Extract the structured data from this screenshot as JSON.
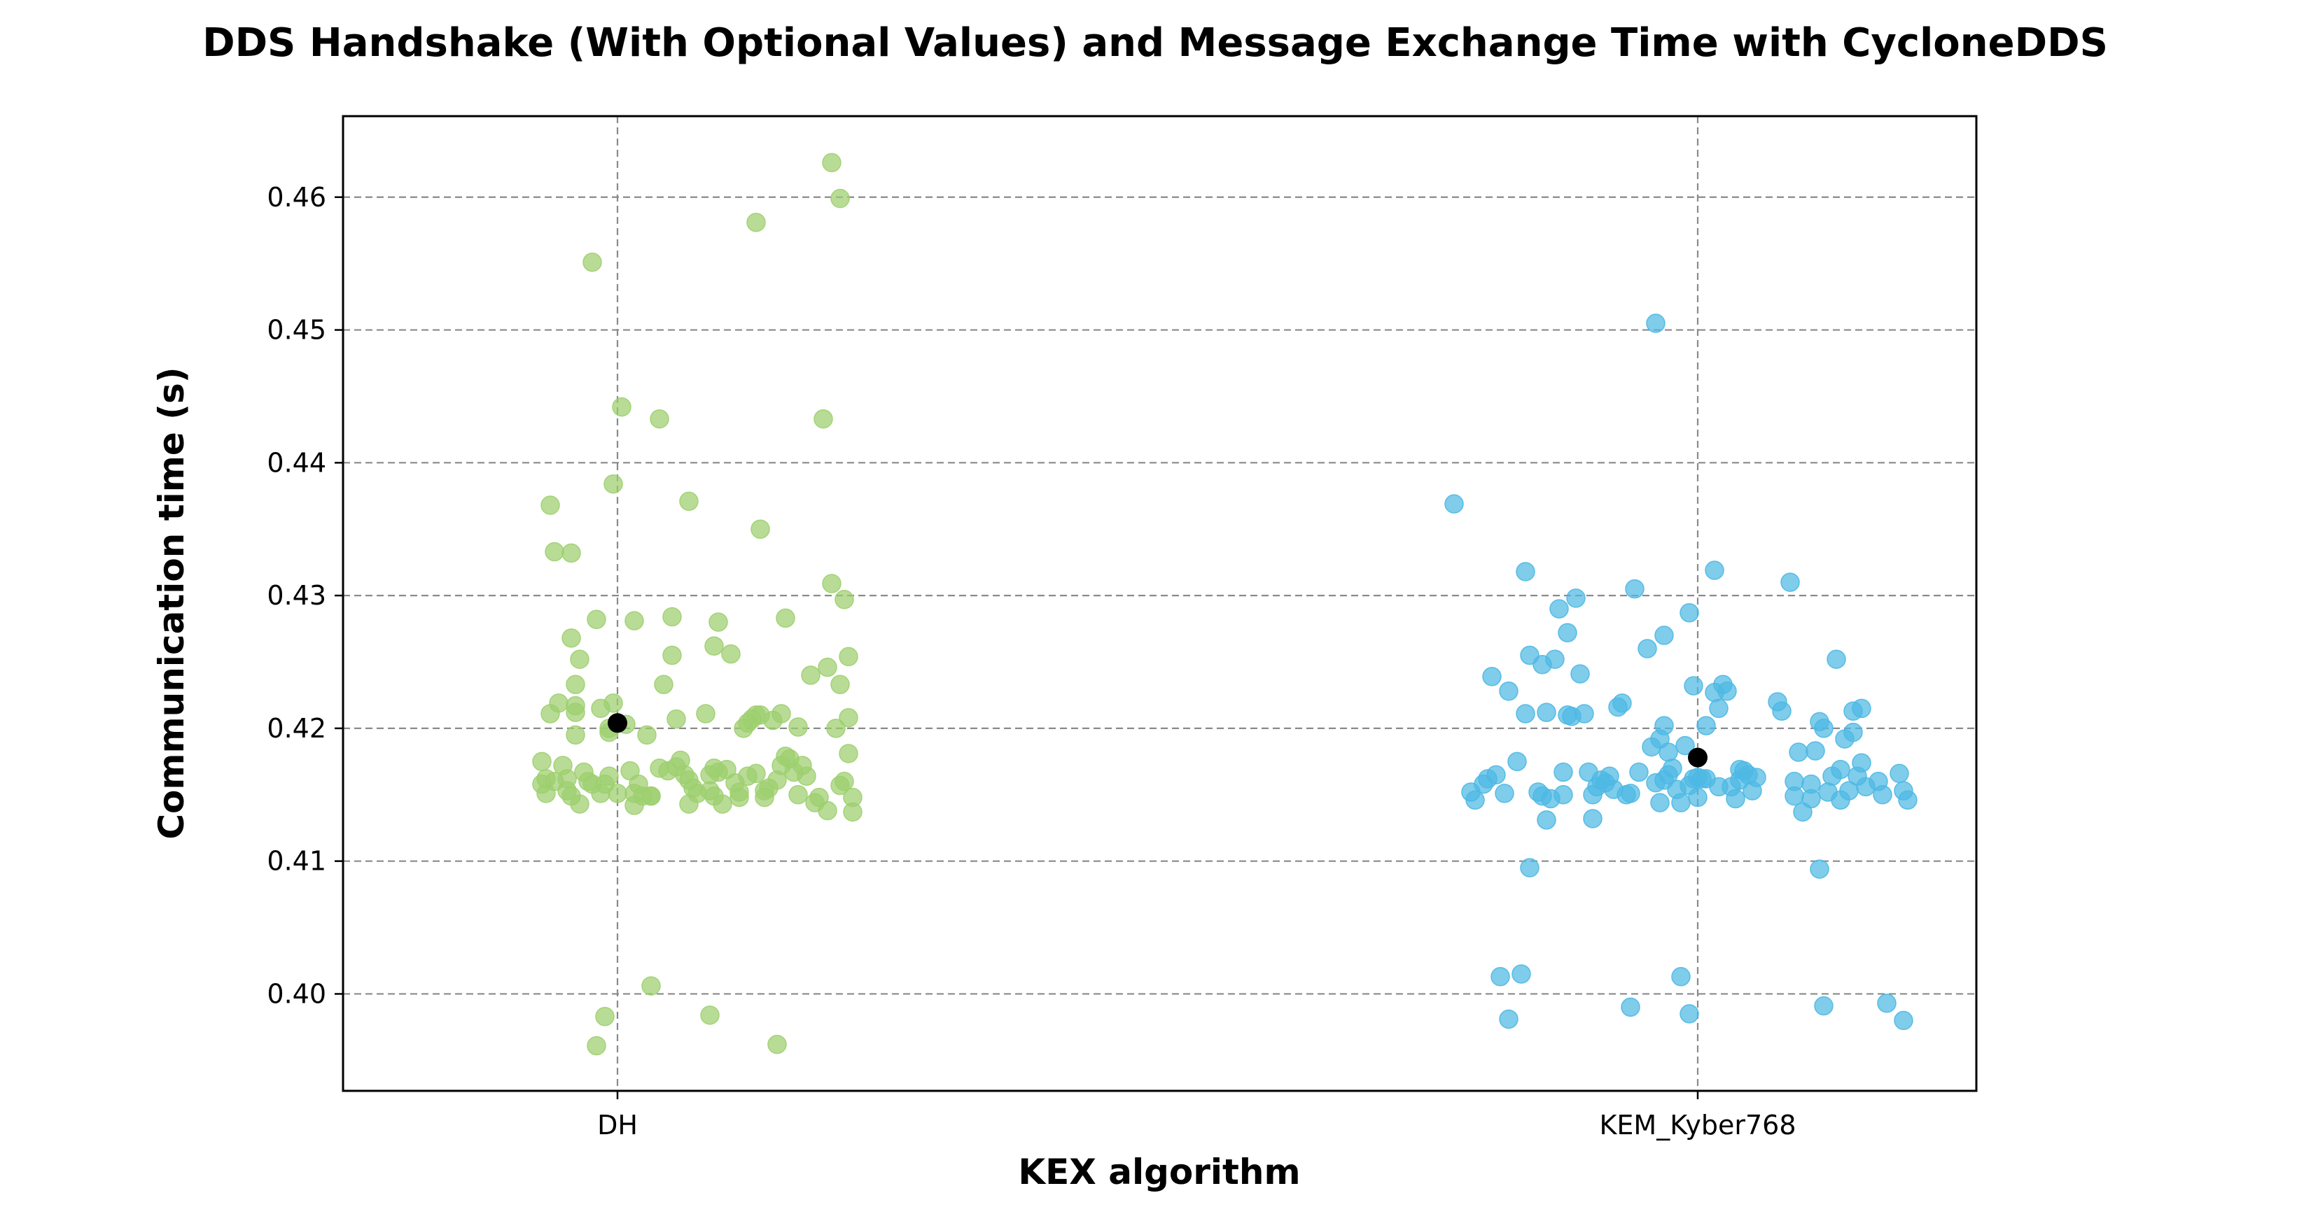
{
  "chart_data": {
    "type": "scatter",
    "title": "DDS Handshake (With Optional Values) and Message Exchange Time with CycloneDDS",
    "xlabel": "KEX algorithm",
    "ylabel": "Communication time (s)",
    "categories": [
      "DH",
      "KEM_Kyber768"
    ],
    "ylim": [
      0.3927,
      0.4661
    ],
    "yticks": [
      "0.40",
      "0.41",
      "0.42",
      "0.43",
      "0.44",
      "0.45",
      "0.46"
    ],
    "grid": true,
    "legend": "none",
    "series": [
      {
        "category": "DH",
        "color": "#9dcf6e",
        "mean": 0.4204,
        "points": [
          [
            -0.18,
            0.4175
          ],
          [
            -0.18,
            0.4158
          ],
          [
            -0.17,
            0.4162
          ],
          [
            -0.17,
            0.4151
          ],
          [
            -0.16,
            0.4211
          ],
          [
            -0.16,
            0.4368
          ],
          [
            -0.15,
            0.4333
          ],
          [
            -0.15,
            0.416
          ],
          [
            -0.14,
            0.4219
          ],
          [
            -0.13,
            0.4172
          ],
          [
            -0.12,
            0.4162
          ],
          [
            -0.12,
            0.4153
          ],
          [
            -0.11,
            0.4332
          ],
          [
            -0.11,
            0.4268
          ],
          [
            -0.11,
            0.4149
          ],
          [
            -0.1,
            0.4212
          ],
          [
            -0.1,
            0.4195
          ],
          [
            -0.1,
            0.4233
          ],
          [
            -0.1,
            0.4217
          ],
          [
            -0.09,
            0.4252
          ],
          [
            -0.09,
            0.4143
          ],
          [
            -0.08,
            0.4167
          ],
          [
            -0.07,
            0.416
          ],
          [
            -0.06,
            0.4551
          ],
          [
            -0.06,
            0.4158
          ],
          [
            -0.05,
            0.3961
          ],
          [
            -0.05,
            0.4282
          ],
          [
            -0.04,
            0.4151
          ],
          [
            -0.04,
            0.4215
          ],
          [
            -0.03,
            0.4158
          ],
          [
            -0.03,
            0.3983
          ],
          [
            -0.02,
            0.42
          ],
          [
            -0.02,
            0.4164
          ],
          [
            -0.02,
            0.4197
          ],
          [
            -0.01,
            0.4384
          ],
          [
            -0.01,
            0.4219
          ],
          [
            0.0,
            0.4151
          ],
          [
            0.01,
            0.4442
          ],
          [
            0.02,
            0.4203
          ],
          [
            0.03,
            0.4168
          ],
          [
            0.04,
            0.4281
          ],
          [
            0.04,
            0.4151
          ],
          [
            0.04,
            0.4142
          ],
          [
            0.05,
            0.4158
          ],
          [
            0.06,
            0.4149
          ],
          [
            0.07,
            0.4195
          ],
          [
            0.08,
            0.4149
          ],
          [
            0.08,
            0.4149
          ],
          [
            0.08,
            0.4006
          ],
          [
            0.1,
            0.4433
          ],
          [
            0.1,
            0.417
          ],
          [
            0.11,
            0.4233
          ],
          [
            0.12,
            0.4168
          ],
          [
            0.13,
            0.4255
          ],
          [
            0.13,
            0.4284
          ],
          [
            0.14,
            0.4207
          ],
          [
            0.14,
            0.4171
          ],
          [
            0.15,
            0.4176
          ],
          [
            0.16,
            0.4165
          ],
          [
            0.17,
            0.4371
          ],
          [
            0.17,
            0.4161
          ],
          [
            0.17,
            0.4143
          ],
          [
            0.18,
            0.4155
          ],
          [
            0.19,
            0.4151
          ],
          [
            0.21,
            0.4211
          ],
          [
            0.22,
            0.4153
          ],
          [
            0.22,
            0.4165
          ],
          [
            0.22,
            0.3984
          ],
          [
            0.23,
            0.4149
          ],
          [
            0.23,
            0.417
          ],
          [
            0.23,
            0.4262
          ],
          [
            0.24,
            0.4167
          ],
          [
            0.24,
            0.428
          ],
          [
            0.25,
            0.4143
          ],
          [
            0.26,
            0.4169
          ],
          [
            0.27,
            0.4256
          ],
          [
            0.28,
            0.4159
          ],
          [
            0.29,
            0.4152
          ],
          [
            0.29,
            0.4148
          ],
          [
            0.3,
            0.42
          ],
          [
            0.31,
            0.4164
          ],
          [
            0.31,
            0.4204
          ],
          [
            0.32,
            0.4207
          ],
          [
            0.33,
            0.421
          ],
          [
            0.33,
            0.4166
          ],
          [
            0.33,
            0.4581
          ],
          [
            0.34,
            0.435
          ],
          [
            0.34,
            0.421
          ],
          [
            0.35,
            0.4153
          ],
          [
            0.35,
            0.4148
          ],
          [
            0.36,
            0.4155
          ],
          [
            0.37,
            0.4206
          ],
          [
            0.38,
            0.4161
          ],
          [
            0.38,
            0.3962
          ],
          [
            0.39,
            0.4211
          ],
          [
            0.39,
            0.4172
          ],
          [
            0.4,
            0.4179
          ],
          [
            0.4,
            0.4283
          ],
          [
            0.41,
            0.4177
          ],
          [
            0.42,
            0.4167
          ],
          [
            0.43,
            0.415
          ],
          [
            0.43,
            0.4201
          ],
          [
            0.44,
            0.4172
          ],
          [
            0.46,
            0.424
          ],
          [
            0.47,
            0.4144
          ],
          [
            0.48,
            0.4148
          ],
          [
            0.49,
            0.4433
          ],
          [
            0.5,
            0.4138
          ],
          [
            0.5,
            0.4246
          ],
          [
            0.51,
            0.4309
          ],
          [
            0.51,
            0.4626
          ],
          [
            0.52,
            0.42
          ],
          [
            0.53,
            0.4233
          ],
          [
            0.53,
            0.4157
          ],
          [
            0.53,
            0.4599
          ],
          [
            0.54,
            0.4297
          ],
          [
            0.54,
            0.416
          ],
          [
            0.55,
            0.4208
          ],
          [
            0.55,
            0.4181
          ],
          [
            0.55,
            0.4254
          ],
          [
            0.56,
            0.4137
          ],
          [
            0.56,
            0.4148
          ],
          [
            0.45,
            0.4164
          ]
        ]
      },
      {
        "category": "KEM_Kyber768",
        "color": "#4db8e3",
        "mean": 0.4178,
        "points": [
          [
            -0.58,
            0.4369
          ],
          [
            -0.54,
            0.4152
          ],
          [
            -0.53,
            0.4146
          ],
          [
            -0.51,
            0.4158
          ],
          [
            -0.5,
            0.4162
          ],
          [
            -0.49,
            0.4239
          ],
          [
            -0.48,
            0.4165
          ],
          [
            -0.47,
            0.4013
          ],
          [
            -0.46,
            0.4151
          ],
          [
            -0.45,
            0.4228
          ],
          [
            -0.45,
            0.3981
          ],
          [
            -0.43,
            0.4175
          ],
          [
            -0.42,
            0.4015
          ],
          [
            -0.41,
            0.4318
          ],
          [
            -0.41,
            0.4211
          ],
          [
            -0.4,
            0.4255
          ],
          [
            -0.4,
            0.4095
          ],
          [
            -0.38,
            0.4152
          ],
          [
            -0.37,
            0.4149
          ],
          [
            -0.37,
            0.4248
          ],
          [
            -0.36,
            0.4212
          ],
          [
            -0.36,
            0.4131
          ],
          [
            -0.35,
            0.4147
          ],
          [
            -0.34,
            0.4252
          ],
          [
            -0.33,
            0.429
          ],
          [
            -0.32,
            0.4167
          ],
          [
            -0.32,
            0.415
          ],
          [
            -0.31,
            0.421
          ],
          [
            -0.31,
            0.4272
          ],
          [
            -0.3,
            0.4209
          ],
          [
            -0.29,
            0.4298
          ],
          [
            -0.28,
            0.4241
          ],
          [
            -0.27,
            0.4211
          ],
          [
            -0.26,
            0.4167
          ],
          [
            -0.25,
            0.4132
          ],
          [
            -0.25,
            0.415
          ],
          [
            -0.24,
            0.4156
          ],
          [
            -0.23,
            0.4161
          ],
          [
            -0.22,
            0.4159
          ],
          [
            -0.21,
            0.4164
          ],
          [
            -0.2,
            0.4154
          ],
          [
            -0.19,
            0.4216
          ],
          [
            -0.18,
            0.4219
          ],
          [
            -0.17,
            0.415
          ],
          [
            -0.16,
            0.399
          ],
          [
            -0.16,
            0.4151
          ],
          [
            -0.15,
            0.4305
          ],
          [
            -0.14,
            0.4167
          ],
          [
            -0.12,
            0.426
          ],
          [
            -0.11,
            0.4186
          ],
          [
            -0.1,
            0.4159
          ],
          [
            -0.1,
            0.4505
          ],
          [
            -0.09,
            0.4192
          ],
          [
            -0.09,
            0.4144
          ],
          [
            -0.08,
            0.4161
          ],
          [
            -0.08,
            0.427
          ],
          [
            -0.08,
            0.4202
          ],
          [
            -0.07,
            0.4165
          ],
          [
            -0.07,
            0.4182
          ],
          [
            -0.06,
            0.417
          ],
          [
            -0.05,
            0.4154
          ],
          [
            -0.04,
            0.4144
          ],
          [
            -0.04,
            0.4013
          ],
          [
            -0.03,
            0.4187
          ],
          [
            -0.02,
            0.4287
          ],
          [
            -0.02,
            0.3985
          ],
          [
            -0.02,
            0.4157
          ],
          [
            -0.01,
            0.4162
          ],
          [
            -0.01,
            0.4232
          ],
          [
            0.0,
            0.4148
          ],
          [
            0.0,
            0.4163
          ],
          [
            0.01,
            0.4162
          ],
          [
            0.02,
            0.4162
          ],
          [
            0.02,
            0.4202
          ],
          [
            0.04,
            0.4319
          ],
          [
            0.04,
            0.4227
          ],
          [
            0.05,
            0.4156
          ],
          [
            0.05,
            0.4215
          ],
          [
            0.06,
            0.4233
          ],
          [
            0.07,
            0.4228
          ],
          [
            0.08,
            0.4156
          ],
          [
            0.09,
            0.4147
          ],
          [
            0.1,
            0.4161
          ],
          [
            0.1,
            0.4169
          ],
          [
            0.11,
            0.4168
          ],
          [
            0.12,
            0.4165
          ],
          [
            0.13,
            0.4153
          ],
          [
            0.14,
            0.4163
          ],
          [
            0.19,
            0.422
          ],
          [
            0.2,
            0.4213
          ],
          [
            0.22,
            0.431
          ],
          [
            0.23,
            0.416
          ],
          [
            0.23,
            0.4149
          ],
          [
            0.24,
            0.4182
          ],
          [
            0.25,
            0.4137
          ],
          [
            0.27,
            0.4158
          ],
          [
            0.27,
            0.4147
          ],
          [
            0.28,
            0.4183
          ],
          [
            0.29,
            0.4205
          ],
          [
            0.29,
            0.4094
          ],
          [
            0.3,
            0.42
          ],
          [
            0.3,
            0.3991
          ],
          [
            0.31,
            0.4152
          ],
          [
            0.32,
            0.4164
          ],
          [
            0.33,
            0.4252
          ],
          [
            0.34,
            0.4169
          ],
          [
            0.34,
            0.4146
          ],
          [
            0.35,
            0.4192
          ],
          [
            0.36,
            0.4153
          ],
          [
            0.37,
            0.4197
          ],
          [
            0.37,
            0.4213
          ],
          [
            0.38,
            0.4164
          ],
          [
            0.39,
            0.4174
          ],
          [
            0.39,
            0.4215
          ],
          [
            0.4,
            0.4156
          ],
          [
            0.43,
            0.416
          ],
          [
            0.44,
            0.415
          ],
          [
            0.45,
            0.3993
          ],
          [
            0.48,
            0.4166
          ],
          [
            0.49,
            0.4153
          ],
          [
            0.5,
            0.4146
          ],
          [
            0.49,
            0.398
          ]
        ]
      }
    ]
  }
}
